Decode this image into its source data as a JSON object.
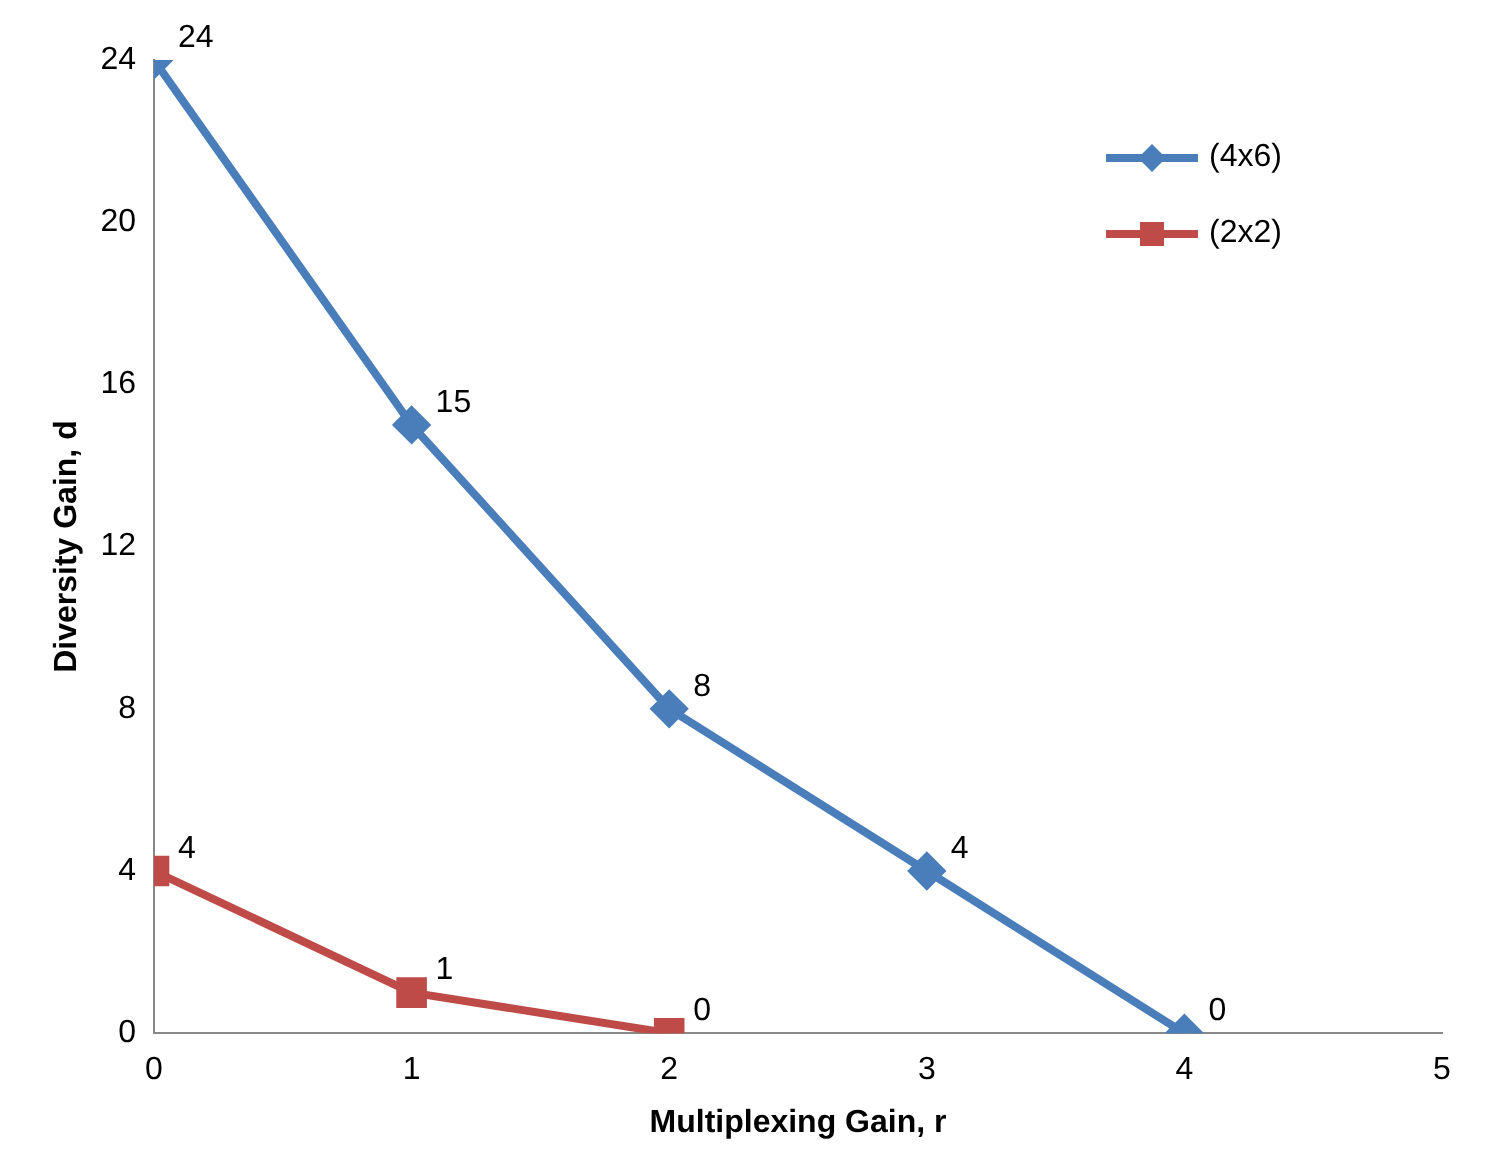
{
  "chart_data": {
    "type": "line",
    "xlabel": "Multiplexing Gain, r",
    "ylabel": "Diversity Gain, d",
    "xlim": [
      0,
      5
    ],
    "xticks": [
      0,
      1,
      2,
      3,
      4,
      5
    ],
    "ylim": [
      0,
      24
    ],
    "yticks": [
      0,
      4,
      8,
      12,
      16,
      20,
      24
    ],
    "grid": false,
    "legend": "top right",
    "data_labels": true,
    "line_style": "solid",
    "series": [
      {
        "name": "(4x6)",
        "color": "#4a7ebb",
        "x": [
          0,
          1,
          2,
          3,
          4
        ],
        "values": [
          24,
          15,
          8,
          4,
          0
        ],
        "marker": "diamond"
      },
      {
        "name": "(2x2)",
        "color": "#be4b48",
        "x": [
          0,
          1,
          2
        ],
        "values": [
          4,
          1,
          0
        ],
        "marker": "square"
      }
    ]
  }
}
